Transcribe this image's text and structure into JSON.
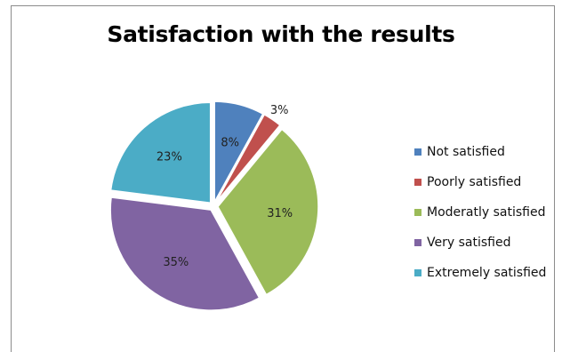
{
  "chart_data": {
    "type": "pie",
    "title": "Satisfaction with the results",
    "categories": [
      "Not satisfied",
      "Poorly satisfied",
      "Moderatly satisfied",
      "Very satisfied",
      "Extremely satisfied"
    ],
    "values": [
      8,
      3,
      31,
      35,
      23
    ],
    "data_labels": [
      "8%",
      "3%",
      "31%",
      "35%",
      "23%"
    ],
    "colors": [
      "#4F81BD",
      "#C0504D",
      "#9BBB59",
      "#8064A2",
      "#4BACC6"
    ],
    "exploded": true,
    "legend": {
      "position": "right"
    }
  }
}
